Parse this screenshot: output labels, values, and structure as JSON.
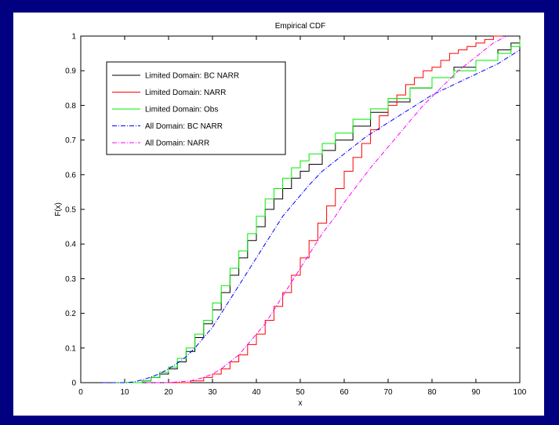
{
  "colors": {
    "slide_background": "#000080",
    "figure_background": "#ffffff",
    "axes": "#000000"
  },
  "chart_data": {
    "type": "line",
    "title": "Empirical CDF",
    "xlabel": "x",
    "ylabel": "F(x)",
    "xlim": [
      0,
      100
    ],
    "ylim": [
      0,
      1
    ],
    "xticks": [
      "0",
      "10",
      "20",
      "30",
      "40",
      "50",
      "60",
      "70",
      "80",
      "90",
      "100"
    ],
    "yticks": [
      "0",
      "0.1",
      "0.2",
      "0.3",
      "0.4",
      "0.5",
      "0.6",
      "0.7",
      "0.8",
      "0.9",
      "1"
    ],
    "grid": false,
    "legend_position": "top-left",
    "series": [
      {
        "name": "Limited Domain: BC NARR",
        "color": "#000000",
        "style": "solid-step",
        "x": [
          7,
          12,
          14,
          16,
          18,
          20,
          22,
          24,
          26,
          28,
          30,
          32,
          34,
          36,
          38,
          40,
          42,
          44,
          46,
          48,
          50,
          52,
          55,
          58,
          62,
          66,
          70,
          75,
          80,
          85,
          90,
          95,
          98,
          100
        ],
        "y": [
          0,
          0,
          0.005,
          0.015,
          0.025,
          0.04,
          0.06,
          0.09,
          0.13,
          0.17,
          0.21,
          0.26,
          0.31,
          0.36,
          0.41,
          0.45,
          0.5,
          0.53,
          0.56,
          0.59,
          0.61,
          0.63,
          0.67,
          0.7,
          0.74,
          0.78,
          0.81,
          0.85,
          0.88,
          0.91,
          0.93,
          0.96,
          0.98,
          1.0
        ]
      },
      {
        "name": "Limited Domain: NARR",
        "color": "#ff0000",
        "style": "solid-step",
        "x": [
          20,
          25,
          28,
          30,
          32,
          34,
          36,
          38,
          40,
          42,
          44,
          46,
          48,
          50,
          52,
          54,
          56,
          58,
          60,
          62,
          64,
          66,
          68,
          70,
          72,
          74,
          76,
          78,
          80,
          82,
          84,
          86,
          88,
          90,
          92,
          94,
          96
        ],
        "y": [
          0,
          0.005,
          0.015,
          0.025,
          0.04,
          0.06,
          0.08,
          0.11,
          0.14,
          0.18,
          0.22,
          0.26,
          0.31,
          0.36,
          0.41,
          0.46,
          0.51,
          0.56,
          0.61,
          0.65,
          0.69,
          0.73,
          0.77,
          0.8,
          0.83,
          0.86,
          0.88,
          0.9,
          0.91,
          0.93,
          0.95,
          0.96,
          0.97,
          0.98,
          0.99,
          1.0,
          1.0
        ]
      },
      {
        "name": "Limited Domain: Obs",
        "color": "#00ee00",
        "style": "solid-step",
        "x": [
          7,
          12,
          14,
          16,
          18,
          20,
          22,
          24,
          26,
          28,
          30,
          32,
          34,
          36,
          38,
          40,
          42,
          44,
          46,
          48,
          50,
          52,
          55,
          58,
          62,
          66,
          70,
          75,
          80,
          85,
          90,
          95,
          98,
          100
        ],
        "y": [
          0,
          0,
          0.005,
          0.015,
          0.03,
          0.045,
          0.07,
          0.1,
          0.14,
          0.18,
          0.23,
          0.28,
          0.33,
          0.38,
          0.43,
          0.48,
          0.53,
          0.56,
          0.59,
          0.62,
          0.64,
          0.66,
          0.69,
          0.72,
          0.76,
          0.79,
          0.82,
          0.85,
          0.88,
          0.9,
          0.93,
          0.95,
          0.97,
          0.99
        ]
      },
      {
        "name": "All Domain: BC NARR",
        "color": "#0000ff",
        "style": "dash-dot",
        "x": [
          5,
          10,
          12,
          14,
          16,
          18,
          20,
          22,
          24,
          26,
          28,
          30,
          32,
          34,
          36,
          38,
          40,
          42,
          44,
          46,
          48,
          50,
          52,
          55,
          60,
          65,
          70,
          75,
          80,
          85,
          90,
          95,
          100
        ],
        "y": [
          0,
          0,
          0.002,
          0.008,
          0.016,
          0.026,
          0.04,
          0.056,
          0.075,
          0.1,
          0.13,
          0.16,
          0.2,
          0.24,
          0.28,
          0.32,
          0.36,
          0.4,
          0.44,
          0.48,
          0.51,
          0.54,
          0.57,
          0.61,
          0.66,
          0.71,
          0.75,
          0.79,
          0.83,
          0.86,
          0.89,
          0.92,
          0.96
        ]
      },
      {
        "name": "All Domain: NARR",
        "color": "#ff00ff",
        "style": "dash-dot",
        "x": [
          15,
          20,
          25,
          28,
          30,
          32,
          34,
          36,
          38,
          40,
          42,
          44,
          46,
          48,
          50,
          52,
          55,
          58,
          60,
          63,
          66,
          70,
          74,
          78,
          82,
          86,
          90,
          94,
          97
        ],
        "y": [
          0,
          0,
          0.005,
          0.015,
          0.025,
          0.04,
          0.06,
          0.08,
          0.11,
          0.14,
          0.17,
          0.21,
          0.25,
          0.29,
          0.33,
          0.37,
          0.43,
          0.48,
          0.52,
          0.57,
          0.62,
          0.68,
          0.74,
          0.8,
          0.85,
          0.9,
          0.94,
          0.98,
          1.0
        ]
      }
    ]
  }
}
